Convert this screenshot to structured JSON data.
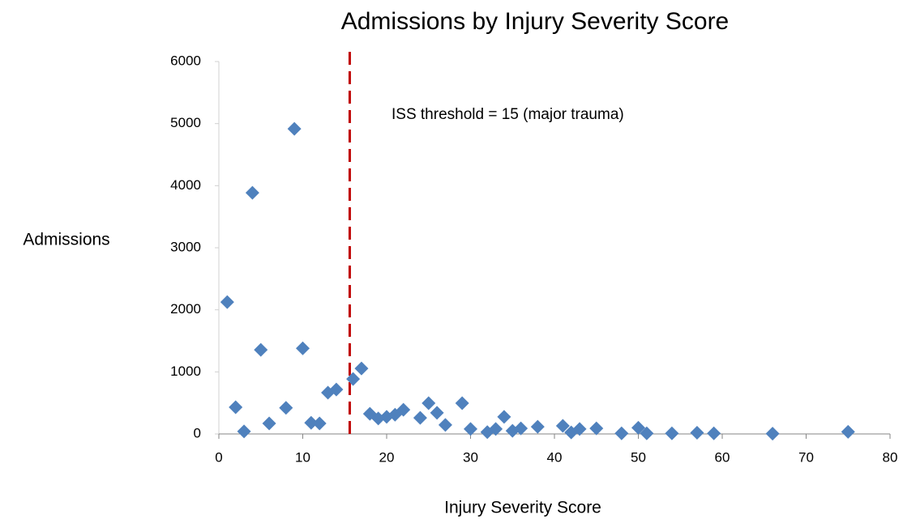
{
  "chart_data": {
    "type": "scatter",
    "title": "Admissions by Injury Severity Score",
    "xlabel": "Injury Severity Score",
    "ylabel": "Admissions",
    "annotation": "ISS threshold = 15 (major trauma)",
    "threshold_x": 15.6,
    "threshold_color": "#c00000",
    "color": "#4f81bd",
    "grid": false,
    "xlim": [
      0,
      80
    ],
    "xticks": [
      0,
      10,
      20,
      30,
      40,
      50,
      60,
      70,
      80
    ],
    "ylim": [
      0,
      6000
    ],
    "yticks": [
      0,
      1000,
      2000,
      3000,
      4000,
      5000,
      6000
    ],
    "x": [
      1,
      2,
      3,
      4,
      5,
      6,
      8,
      9,
      10,
      11,
      12,
      13,
      14,
      16,
      17,
      18,
      19,
      20,
      21,
      22,
      24,
      25,
      26,
      27,
      29,
      30,
      32,
      33,
      34,
      35,
      36,
      38,
      41,
      42,
      43,
      45,
      48,
      50,
      51,
      54,
      57,
      59,
      66,
      75
    ],
    "values": [
      2125,
      430,
      40,
      3885,
      1355,
      170,
      420,
      4915,
      1380,
      180,
      170,
      665,
      715,
      885,
      1055,
      325,
      250,
      275,
      310,
      390,
      260,
      495,
      340,
      145,
      495,
      80,
      30,
      80,
      275,
      50,
      90,
      115,
      130,
      25,
      80,
      90,
      10,
      100,
      10,
      10,
      20,
      10,
      5,
      35
    ]
  }
}
